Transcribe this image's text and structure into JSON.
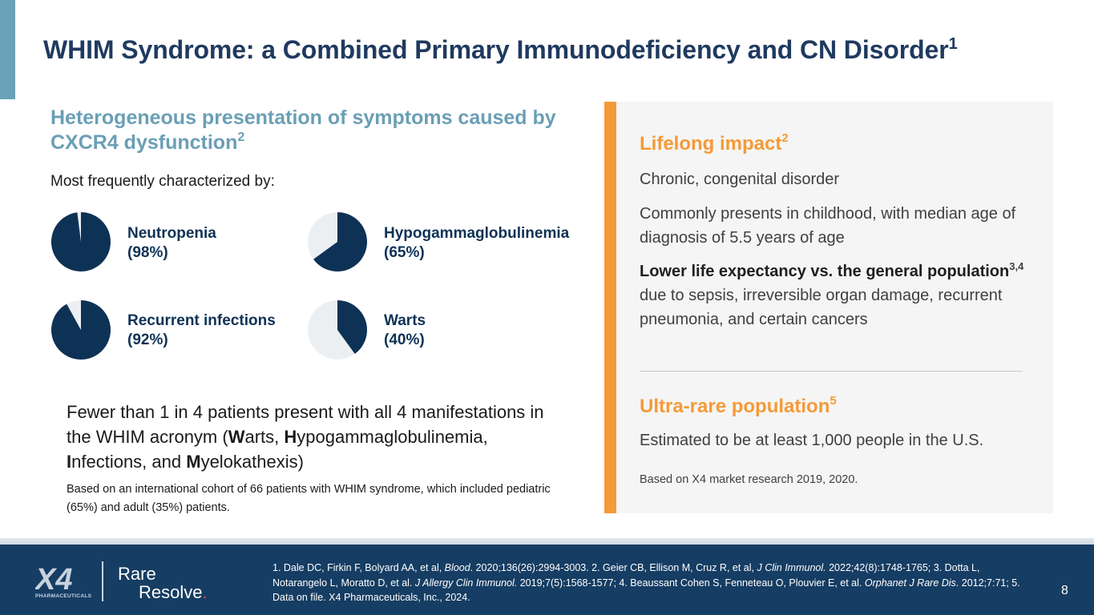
{
  "slide": {
    "title": "WHIM Syndrome: a Combined Primary Immunodeficiency and CN Disorder",
    "title_sup": "1",
    "accent_color": "#6aa3b8"
  },
  "left": {
    "heading": "Heterogeneous presentation of symptoms caused by CXCR4 dysfunction",
    "heading_sup": "2",
    "subheading": "Most frequently characterized by:",
    "manifestations": [
      {
        "name": "Neutropenia",
        "pct_label": "(98%)",
        "percent": 98
      },
      {
        "name": "Hypogammaglobulinemia",
        "pct_label": "(65%)",
        "percent": 65
      },
      {
        "name": "Recurrent infections",
        "pct_label": "(92%)",
        "percent": 92
      },
      {
        "name": "Warts",
        "pct_label": "(40%)",
        "percent": 40
      }
    ],
    "pie_fill_color": "#0e3256",
    "pie_empty_color": "#eceff2",
    "summary": {
      "p1": "Fewer than 1 in 4 patients present with all 4 manifestations in the WHIM acronym (",
      "w": "W",
      "p2": "arts, ",
      "h": "H",
      "p3": "ypogammaglobulinemia, ",
      "i": "I",
      "p4": "nfections, and ",
      "m": "M",
      "p5": "yelokathexis)"
    },
    "note": "Based on an international cohort of 66 patients with WHIM syndrome, which included pediatric (65%) and adult (35%) patients."
  },
  "panel": {
    "accent_color": "#f59a38",
    "lifelong_heading": "Lifelong impact",
    "lifelong_sup": "2",
    "line1": "Chronic, congenital disorder",
    "line2": "Commonly presents in childhood, with median age of diagnosis of 5.5 years of age",
    "line3_bold": "Lower life expectancy vs. the general population",
    "line3_sup": "3,4",
    "line3_rest": " due to sepsis, irreversible organ damage, recurrent pneumonia, and certain cancers",
    "ultra_heading": "Ultra-rare population",
    "ultra_sup": "5",
    "ultra_text": "Estimated to be at least 1,000 people in the U.S.",
    "ultra_note": "Based on X4 market research 2019, 2020."
  },
  "footer": {
    "logo_x4": "X4",
    "logo_small": "PHARMACEUTICALS",
    "logo_rare": "Rare",
    "logo_resolve": "Resolve",
    "logo_dot": ".",
    "refs": {
      "r1a": "1. Dale DC, Firkin F, Bolyard AA, et al, ",
      "r1j": "Blood",
      "r1b": ". 2020;136(26):2994-3003. 2. Geier CB, Ellison M, Cruz R, et al, ",
      "r2j": "J Clin Immunol.",
      "r2b": " 2022;42(8):1748-1765; 3. Dotta L, Notarangelo L, Moratto D, et al. ",
      "r3j": "J Allergy Clin Immunol.",
      "r3b": " 2019;7(5):1568-1577;  4. Beaussant Cohen S, Fenneteau O, Plouvier E, et al. ",
      "r4j": "Orphanet J Rare Dis",
      "r4b": ". 2012;7:71; 5. Data on file. X4 Pharmaceuticals, Inc., 2024."
    },
    "page_number": "8",
    "background": "#163d63"
  }
}
